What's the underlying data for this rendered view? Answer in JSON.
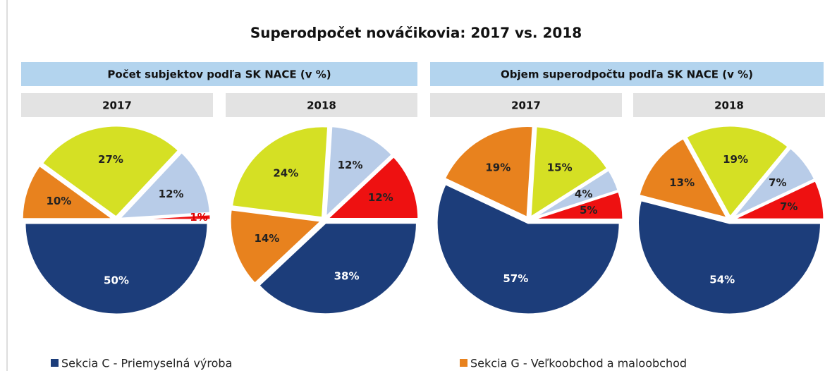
{
  "title": "Superodpočet nováčikovia: 2017 vs. 2018",
  "groups": [
    "Počet subjektov podľa SK NACE  (v %)",
    "Objem superodpočtu podľa SK NACE  (v %)"
  ],
  "chart_data": [
    {
      "type": "pie",
      "title": "2017",
      "categories": [
        "Sekcia C - Priemyselná výroba",
        "Sekcia G - Veľkoobchod a maloobchod",
        null,
        null,
        null
      ],
      "values": [
        50,
        10,
        27,
        12,
        1
      ],
      "value_labels": [
        "50%",
        "10%",
        "27%",
        "12%",
        "1%"
      ],
      "colors": [
        "#1c3d7a",
        "#e8821e",
        "#d5e024",
        "#b8cce8",
        "#ee1111"
      ]
    },
    {
      "type": "pie",
      "title": "2018",
      "categories": [
        "Sekcia C - Priemyselná výroba",
        "Sekcia G - Veľkoobchod a maloobchod",
        null,
        null,
        null
      ],
      "values": [
        38,
        14,
        24,
        12,
        12
      ],
      "value_labels": [
        "38%",
        "14%",
        "24%",
        "12%",
        "12%"
      ],
      "colors": [
        "#1c3d7a",
        "#e8821e",
        "#d5e024",
        "#b8cce8",
        "#ee1111"
      ]
    },
    {
      "type": "pie",
      "title": "2017",
      "categories": [
        "Sekcia C - Priemyselná výroba",
        "Sekcia G - Veľkoobchod a maloobchod",
        null,
        null,
        null
      ],
      "values": [
        57,
        19,
        15,
        4,
        5
      ],
      "value_labels": [
        "57%",
        "19%",
        "15%",
        "4%",
        "5%"
      ],
      "colors": [
        "#1c3d7a",
        "#e8821e",
        "#d5e024",
        "#b8cce8",
        "#ee1111"
      ]
    },
    {
      "type": "pie",
      "title": "2018",
      "categories": [
        "Sekcia C - Priemyselná výroba",
        "Sekcia G - Veľkoobchod a maloobchod",
        null,
        null,
        null
      ],
      "values": [
        54,
        13,
        19,
        7,
        7
      ],
      "value_labels": [
        "54%",
        "13%",
        "19%",
        "7%",
        "7%"
      ],
      "colors": [
        "#1c3d7a",
        "#e8821e",
        "#d5e024",
        "#b8cce8",
        "#ee1111"
      ]
    }
  ]
}
